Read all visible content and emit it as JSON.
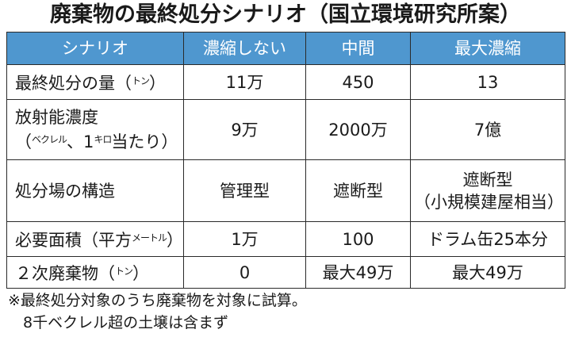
{
  "title": "廃棄物の最終処分シナリオ（国立環境研究所案）",
  "header": [
    "シナリオ",
    "濃縮しない",
    "中間",
    "最大濃縮"
  ],
  "rows": [
    {
      "label_main": "最終処分の量（",
      "label_unit": "トン",
      "label_end": "）",
      "values": [
        "11万",
        "450",
        "13"
      ]
    },
    {
      "label_line1": "放射能濃度",
      "label_line2_a": "（",
      "label_line2_unit1": "ベクレル",
      "label_line2_b": "、1",
      "label_line2_unit2": "キロ",
      "label_line2_c": "当たり）",
      "values": [
        "9万",
        "2000万",
        "7億"
      ]
    },
    {
      "label": "処分場の構造",
      "values": [
        "管理型",
        "遮断型"
      ],
      "value3_line1": "遮断型",
      "value3_line2": "（小規模建屋相当）"
    },
    {
      "label_main": "必要面積（平方",
      "label_unit": "メートル",
      "label_end": "）",
      "values": [
        "1万",
        "100",
        "ドラム缶25本分"
      ]
    },
    {
      "label_main": "２次廃棄物（",
      "label_unit": "トン",
      "label_end": "）",
      "values": [
        "0",
        "最大49万",
        "最大49万"
      ]
    }
  ],
  "notes": [
    "※最終処分対象のうち廃棄物を対象に試算。",
    "　8千ベクレル超の土壌は含まず"
  ]
}
